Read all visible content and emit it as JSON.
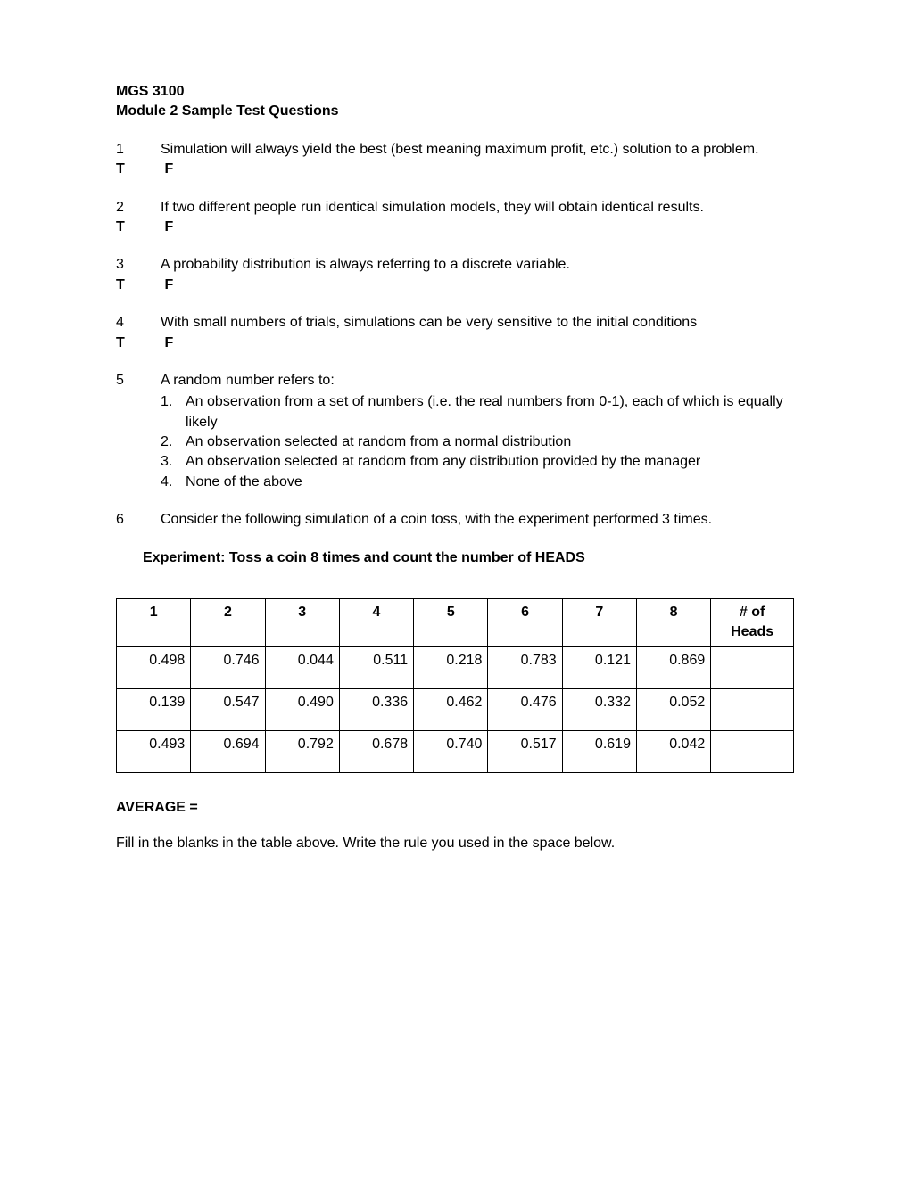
{
  "header": {
    "course": "MGS 3100",
    "title": "Module 2 Sample Test Questions"
  },
  "tf": {
    "t": "T",
    "f": "F"
  },
  "questions": {
    "q1": {
      "num": "1",
      "text": "Simulation will always yield the best (best meaning maximum profit, etc.) solution to a problem."
    },
    "q2": {
      "num": "2",
      "text": "If two different people run identical simulation models, they will obtain identical results."
    },
    "q3": {
      "num": "3",
      "text": "A probability distribution is always referring to a discrete variable."
    },
    "q4": {
      "num": "4",
      "text": "With small numbers of trials, simulations can be very sensitive to the initial conditions"
    },
    "q5": {
      "num": "5",
      "text": "A random number refers to:",
      "options": {
        "a": {
          "num": "1.",
          "text": "An observation from a set of numbers (i.e. the real numbers from 0-1), each of which is equally likely"
        },
        "b": {
          "num": "2.",
          "text": "An observation selected at random from a normal distribution"
        },
        "c": {
          "num": "3.",
          "text": "An observation selected at random from any distribution provided by the manager"
        },
        "d": {
          "num": "4.",
          "text": "None of the above"
        }
      }
    },
    "q6": {
      "num": "6",
      "text": "Consider the following simulation of a coin toss, with the experiment performed 3 times."
    }
  },
  "experiment": {
    "title": "Experiment: Toss a coin 8 times and count the number of HEADS",
    "columns": {
      "c1": "1",
      "c2": "2",
      "c3": "3",
      "c4": "4",
      "c5": "5",
      "c6": "6",
      "c7": "7",
      "c8": "8",
      "heads": "# of Heads"
    },
    "rows": {
      "r1": {
        "c1": "0.498",
        "c2": "0.746",
        "c3": "0.044",
        "c4": "0.511",
        "c5": "0.218",
        "c6": "0.783",
        "c7": "0.121",
        "c8": "0.869",
        "heads": ""
      },
      "r2": {
        "c1": "0.139",
        "c2": "0.547",
        "c3": "0.490",
        "c4": "0.336",
        "c5": "0.462",
        "c6": "0.476",
        "c7": "0.332",
        "c8": "0.052",
        "heads": ""
      },
      "r3": {
        "c1": "0.493",
        "c2": "0.694",
        "c3": "0.792",
        "c4": "0.678",
        "c5": "0.740",
        "c6": "0.517",
        "c7": "0.619",
        "c8": "0.042",
        "heads": ""
      }
    },
    "average_label": "AVERAGE   =",
    "instruction": "Fill in the blanks in the table above. Write the rule you used in the space below."
  }
}
